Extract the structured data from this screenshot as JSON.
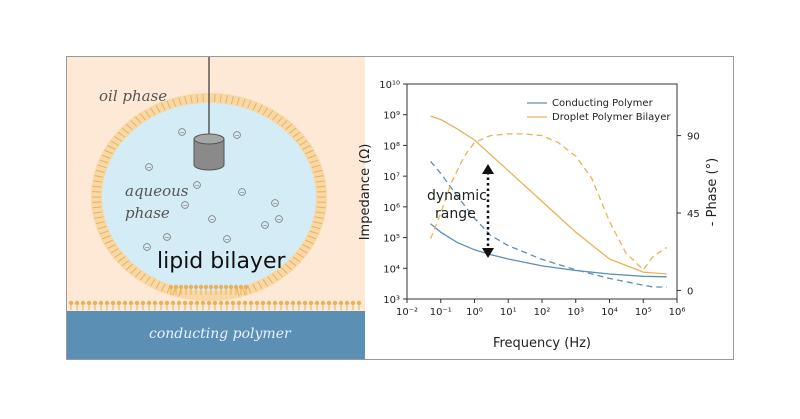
{
  "diagram": {
    "oil_label": "oil phase",
    "aqueous_line1": "aqueous",
    "aqueous_line2": "phase",
    "lipid_label": "lipid bilayer",
    "polymer_label": "conducting polymer",
    "ion_symbol": "−",
    "colors": {
      "oil": "#fde9d6",
      "aqueous": "#d4ecf6",
      "lipid": "#e8b358",
      "polymer": "#5b8fb4",
      "electrode": "#8a8a8a"
    }
  },
  "chart_data": {
    "type": "line",
    "xlabel": "Frequency (Hz)",
    "ylabel": "Impedance (Ω)",
    "y2label": "- Phase (°)",
    "xscale": "log",
    "yscale": "log",
    "xlim": [
      0.01,
      1000000
    ],
    "ylim": [
      1000,
      10000000000
    ],
    "y2lim": [
      -5,
      120
    ],
    "x_ticks": [
      "10⁻²",
      "10⁻¹",
      "10⁰",
      "10¹",
      "10²",
      "10³",
      "10⁴",
      "10⁵",
      "10⁶"
    ],
    "y_ticks": [
      "10³",
      "10⁴",
      "10⁵",
      "10⁶",
      "10⁷",
      "10⁸",
      "10⁹",
      "10¹⁰"
    ],
    "y2_ticks": [
      "0",
      "45",
      "90"
    ],
    "legend_position": "top-right",
    "series": [
      {
        "name": "Conducting Polymer",
        "color": "#5b8fb4",
        "impedance": {
          "x": [
            0.05,
            0.1,
            0.3,
            1,
            3,
            10,
            100,
            1000,
            10000,
            100000,
            500000
          ],
          "y": [
            280000,
            150000,
            70000,
            40000,
            28000,
            20000,
            12000,
            8500,
            6500,
            5500,
            5300
          ]
        },
        "phase": {
          "x": [
            0.05,
            0.1,
            0.3,
            1,
            3,
            10,
            100,
            1000,
            10000,
            100000,
            200000,
            500000
          ],
          "y": [
            75,
            68,
            55,
            42,
            32,
            26,
            18,
            12,
            7,
            3,
            2,
            2
          ]
        }
      },
      {
        "name": "Droplet Polymer Bilayer",
        "color": "#e8b358",
        "impedance": {
          "x": [
            0.05,
            0.1,
            0.3,
            1,
            3,
            10,
            100,
            1000,
            10000,
            100000,
            500000
          ],
          "y": [
            900000000,
            700000000,
            350000000,
            150000000,
            50000000,
            15000000,
            1500000,
            150000,
            20000,
            7500,
            6500
          ]
        },
        "phase": {
          "x": [
            0.05,
            0.1,
            0.2,
            0.5,
            1,
            3,
            10,
            30,
            100,
            300,
            1000,
            3000,
            10000,
            30000,
            100000,
            200000,
            500000
          ],
          "y": [
            30,
            45,
            62,
            78,
            86,
            90,
            91,
            91,
            90,
            86,
            78,
            65,
            40,
            22,
            12,
            20,
            25
          ]
        }
      }
    ],
    "annotation": {
      "line1": "dynamic",
      "line2": "range"
    }
  }
}
